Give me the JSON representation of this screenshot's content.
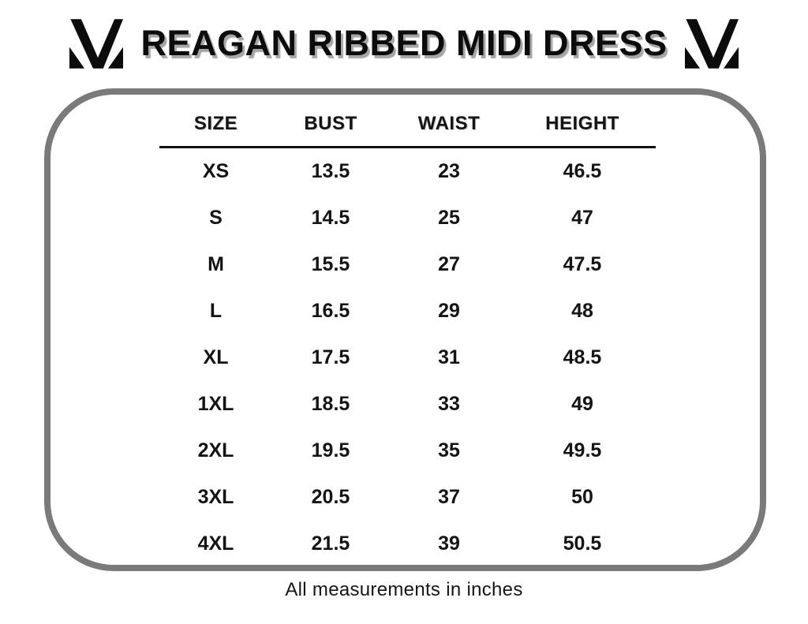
{
  "header": {
    "title": "REAGAN RIBBED MIDI DRESS",
    "logo": "brand-monogram-M"
  },
  "chart_data": {
    "type": "table",
    "title": "REAGAN RIBBED MIDI DRESS",
    "columns": [
      "SIZE",
      "BUST",
      "WAIST",
      "HEIGHT"
    ],
    "rows": [
      [
        "XS",
        "13.5",
        "23",
        "46.5"
      ],
      [
        "S",
        "14.5",
        "25",
        "47"
      ],
      [
        "M",
        "15.5",
        "27",
        "47.5"
      ],
      [
        "L",
        "16.5",
        "29",
        "48"
      ],
      [
        "XL",
        "17.5",
        "31",
        "48.5"
      ],
      [
        "1XL",
        "18.5",
        "33",
        "49"
      ],
      [
        "2XL",
        "19.5",
        "35",
        "49.5"
      ],
      [
        "3XL",
        "20.5",
        "37",
        "50"
      ],
      [
        "4XL",
        "21.5",
        "39",
        "50.5"
      ]
    ],
    "units": "inches"
  },
  "footer": {
    "note": "All measurements in inches"
  },
  "colors": {
    "background": "#ffffff",
    "border": "#7a7a7a",
    "text": "#111111",
    "title_shadow": "#a6a6a6"
  }
}
